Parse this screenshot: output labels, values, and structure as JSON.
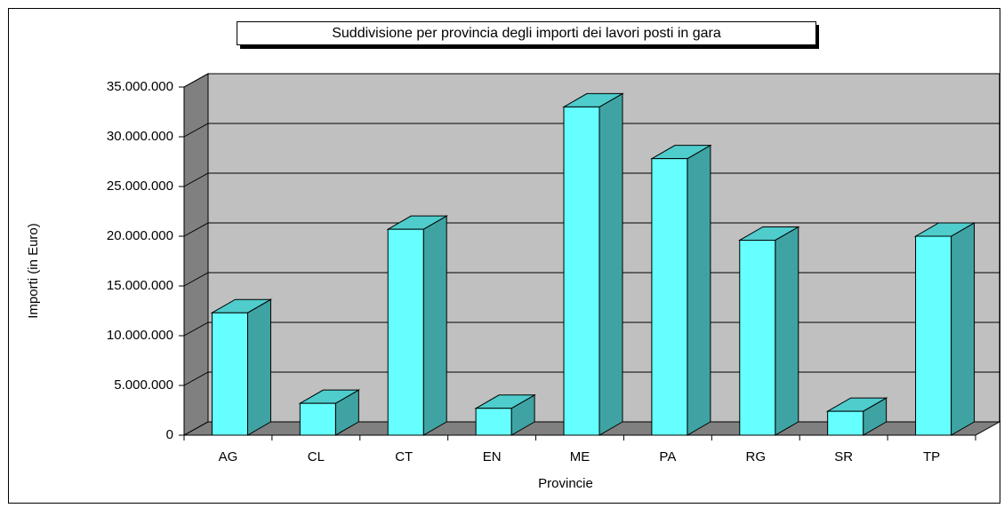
{
  "chart_data": {
    "type": "bar3d",
    "title": "Suddivisione per provincia degli importi dei lavori posti in gara",
    "x_label": "Provincie",
    "y_label": "Importi (in Euro)",
    "categories": [
      "AG",
      "CL",
      "CT",
      "EN",
      "ME",
      "PA",
      "RG",
      "SR",
      "TP"
    ],
    "values": [
      12300000,
      3200000,
      20700000,
      2700000,
      33000000,
      27800000,
      19600000,
      2400000,
      20000000
    ],
    "color": "#66ffff",
    "ylim": [
      0,
      35000000
    ],
    "yticks": [
      0,
      {
        "value": 5000000,
        "label": "5.000.000"
      },
      {
        "value": 10000000,
        "label": "10.000.000"
      },
      {
        "value": 15000000,
        "label": "15.000.000"
      },
      {
        "value": 20000000,
        "label": "20.000.000"
      },
      {
        "value": 25000000,
        "label": "25.000.000"
      },
      {
        "value": 30000000,
        "label": "30.000.000"
      },
      {
        "value": 35000000,
        "label": "35.000.000"
      }
    ],
    "grid": true
  }
}
